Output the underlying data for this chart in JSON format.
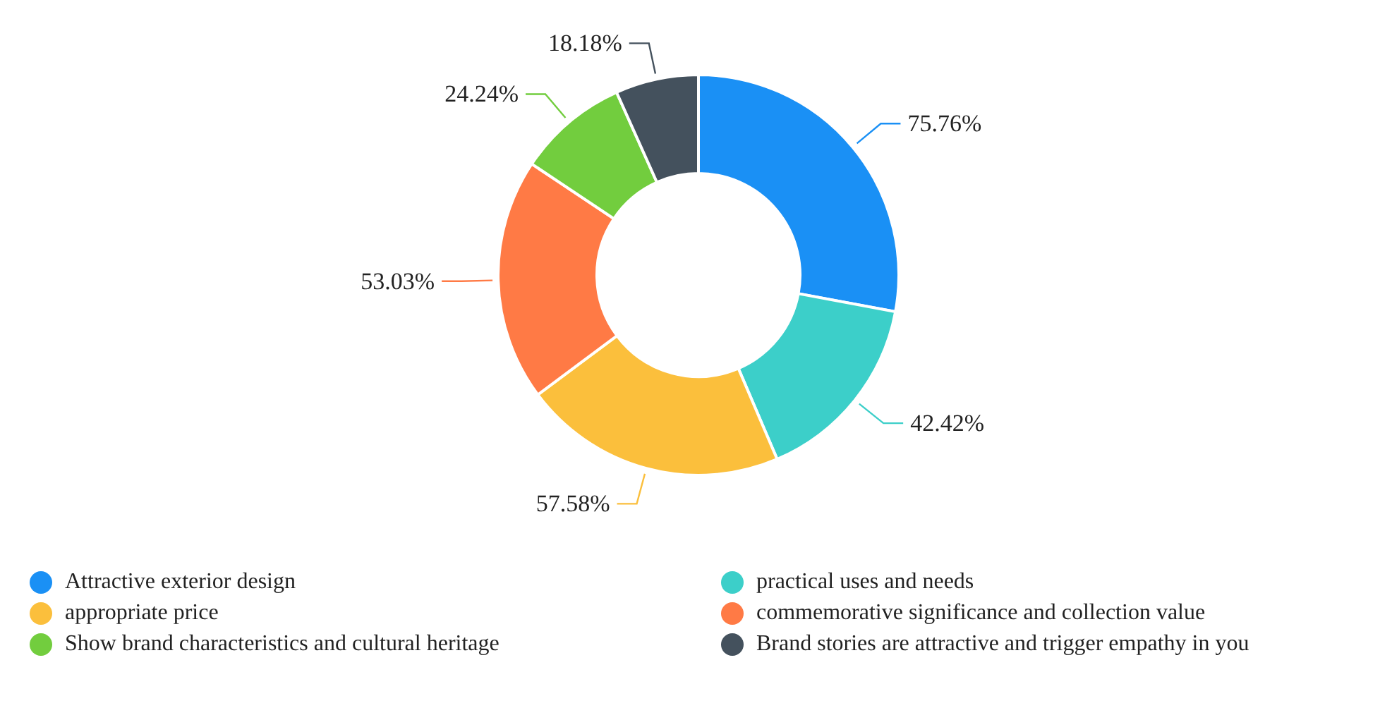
{
  "chart_data": {
    "type": "donut",
    "categories": [
      "Attractive exterior design",
      "practical uses and needs",
      "appropriate price",
      "commemorative significance and collection value",
      "Show brand characteristics and cultural heritage",
      "Brand stories are attractive and trigger empathy in you"
    ],
    "values": [
      75.76,
      42.42,
      57.58,
      53.03,
      24.24,
      18.18
    ],
    "value_labels": [
      "75.76%",
      "42.42%",
      "57.58%",
      "53.03%",
      "24.24%",
      "18.18%"
    ],
    "colors": [
      "#1a90f5",
      "#3ccfc9",
      "#fbbf3c",
      "#ff7a45",
      "#72cd3e",
      "#44515d"
    ],
    "legend": "bottom"
  }
}
